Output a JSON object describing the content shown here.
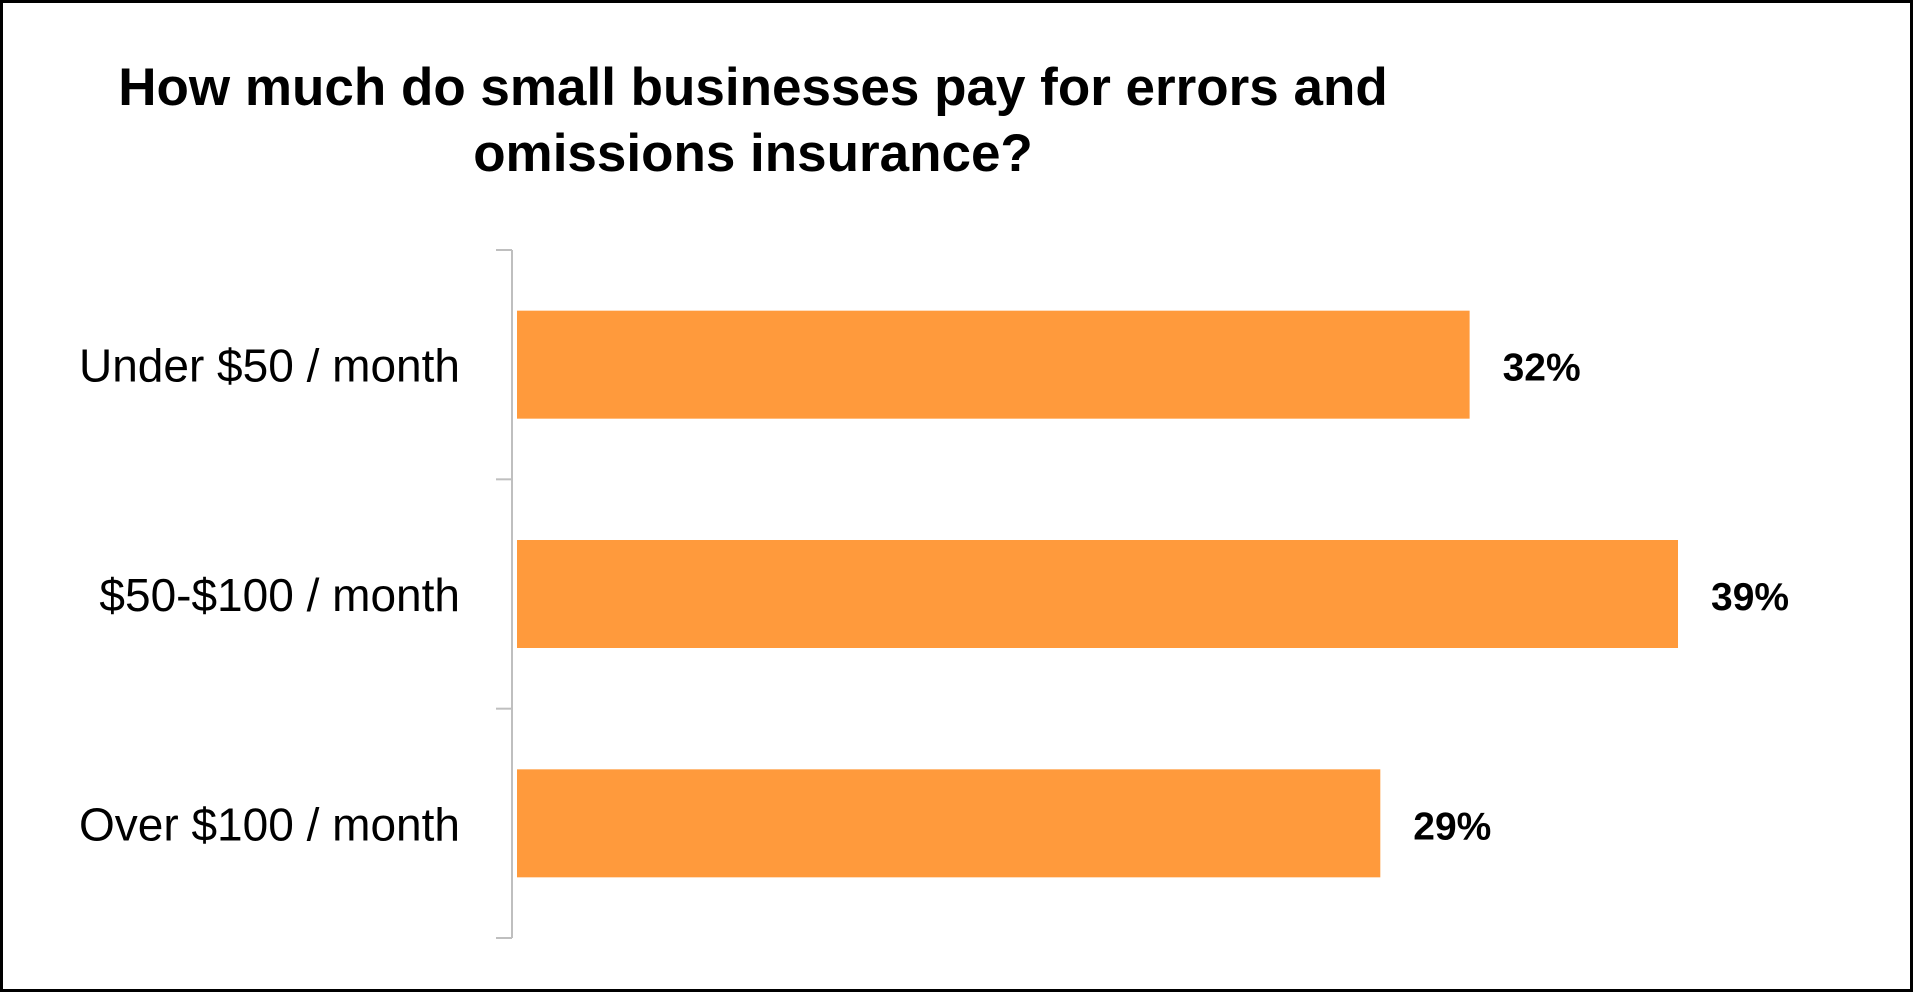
{
  "chart_data": {
    "type": "bar",
    "orientation": "horizontal",
    "title": "How much do small businesses pay for errors and omissions insurance?",
    "title_lines": [
      "How much do small businesses pay for errors and",
      "omissions insurance?"
    ],
    "categories": [
      "Under $50 / month",
      "$50-$100 / month",
      "Over $100 / month"
    ],
    "values": [
      32,
      39,
      29
    ],
    "data_labels": [
      "32%",
      "39%",
      "29%"
    ],
    "xlim": [
      0,
      39
    ],
    "xlabel": "",
    "ylabel": "",
    "grid": false,
    "legend": "none"
  },
  "colors": {
    "bar": "#FF9A3C",
    "axis": "#BFBFBF",
    "text": "#000000",
    "frame": "#000000"
  }
}
